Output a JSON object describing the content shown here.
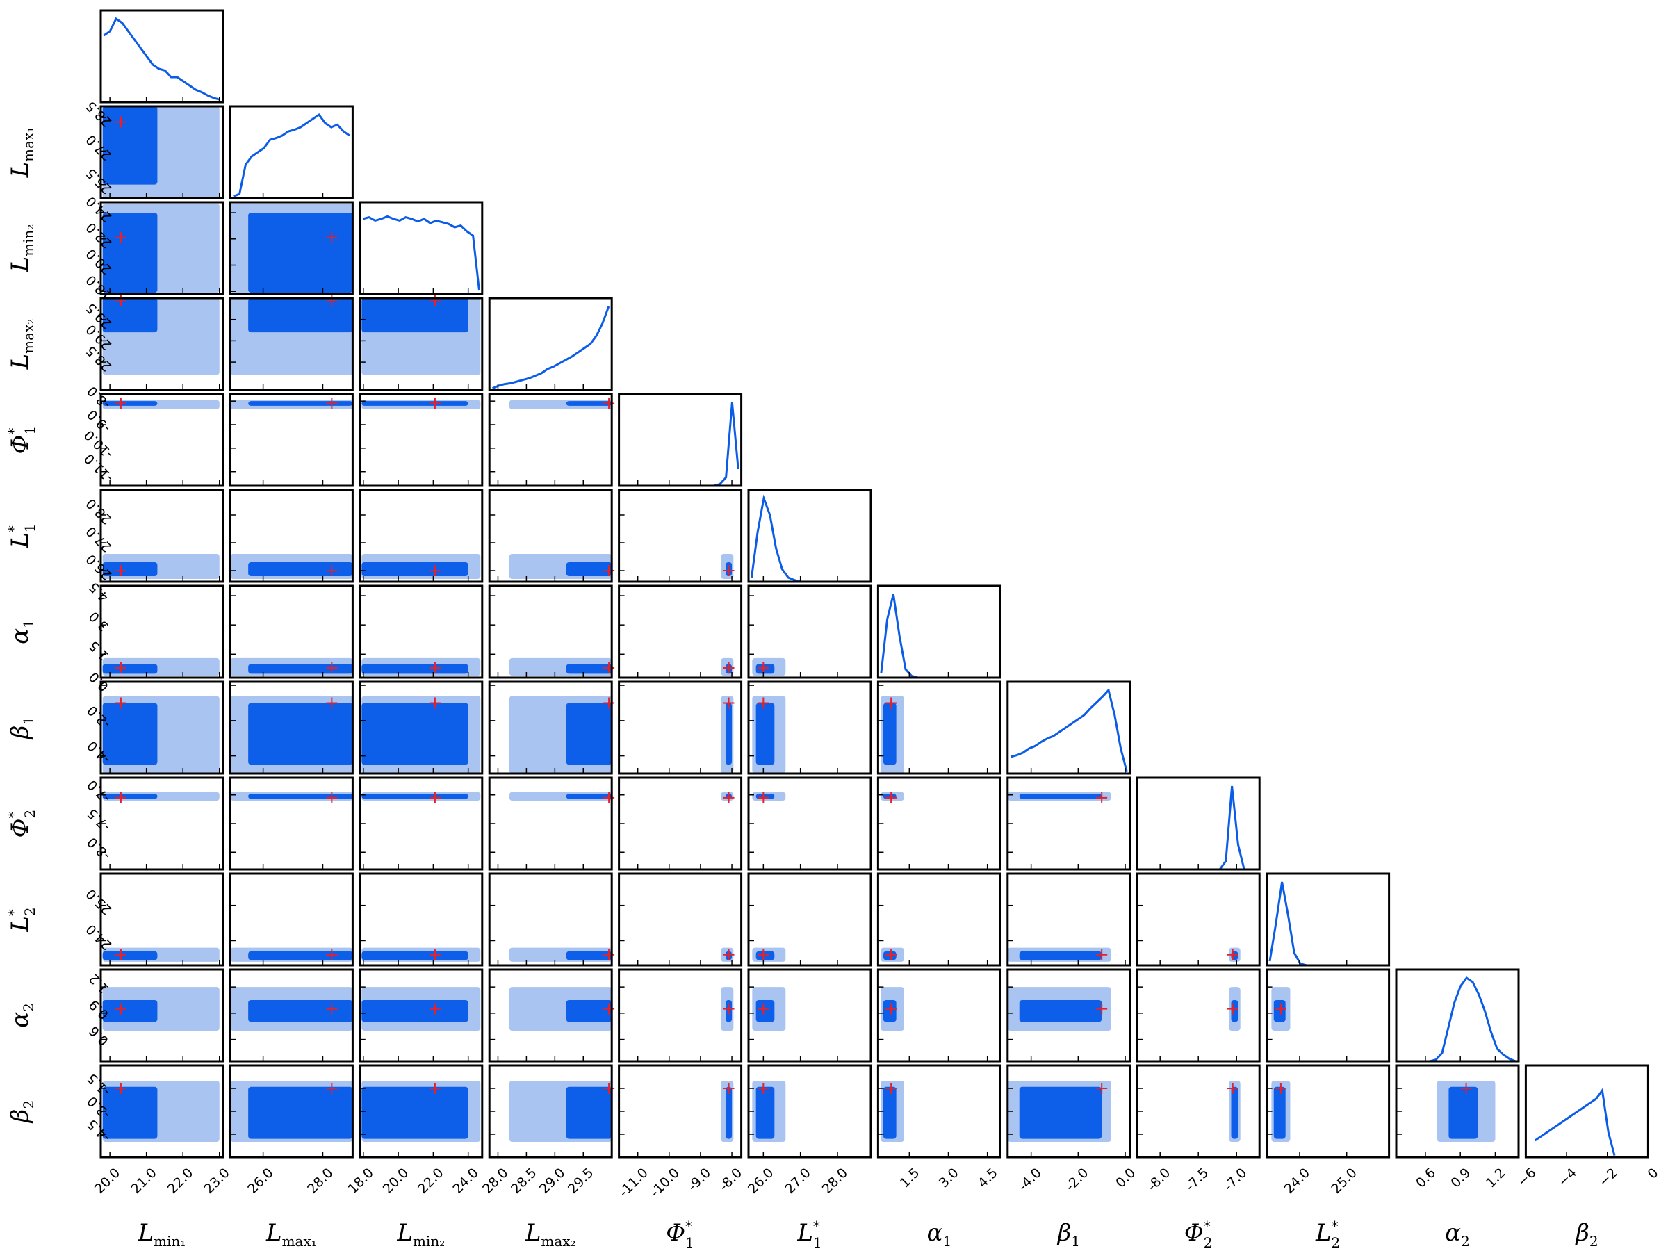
{
  "chart_data": {
    "type": "corner",
    "colors": {
      "outer": "#a9c4f0",
      "inner": "#0d5ee8",
      "line": "#0b5ce6",
      "truth": "#e8202a"
    },
    "hist_ylim": [
      0,
      1.1
    ],
    "params": [
      {
        "label": {
          "symbol": "L",
          "sub": "min₁"
        },
        "lim": [
          19.75,
          23.1
        ],
        "truth": 20.3,
        "interval95": [
          19.8,
          23.0
        ],
        "interval68": [
          19.8,
          21.3
        ],
        "xticks": [
          {
            "value": 20,
            "label": "20.0"
          },
          {
            "value": 21,
            "label": "21.0"
          },
          {
            "value": 22,
            "label": "22.0"
          },
          {
            "value": 23,
            "label": "23.0"
          }
        ],
        "hist": [
          0.8,
          0.85,
          1.0,
          0.95,
          0.85,
          0.75,
          0.65,
          0.55,
          0.45,
          0.4,
          0.38,
          0.3,
          0.3,
          0.25,
          0.2,
          0.15,
          0.12,
          0.08,
          0.05,
          0.03
        ]
      },
      {
        "label": {
          "symbol": "L",
          "sub": "max₁"
        },
        "lim": [
          24.9,
          29.0
        ],
        "truth": 28.3,
        "interval95": [
          24.9,
          29.0
        ],
        "interval68": [
          25.5,
          29.0
        ],
        "xticks": [
          {
            "value": 26,
            "label": "26.0"
          },
          {
            "value": 28,
            "label": "28.0"
          }
        ],
        "yticks": [
          {
            "value": 25.5,
            "label": "25.5"
          },
          {
            "value": 27,
            "label": "27.0"
          },
          {
            "value": 28.5,
            "label": "28.5"
          }
        ],
        "hist": [
          0.02,
          0.05,
          0.4,
          0.5,
          0.55,
          0.6,
          0.7,
          0.72,
          0.75,
          0.8,
          0.82,
          0.85,
          0.9,
          0.95,
          1.0,
          0.9,
          0.85,
          0.88,
          0.8,
          0.75
        ]
      },
      {
        "label": {
          "symbol": "L",
          "sub": "min₂"
        },
        "lim": [
          17.8,
          24.8
        ],
        "truth": 22.1,
        "interval95": [
          17.9,
          24.7
        ],
        "interval68": [
          17.9,
          24.0
        ],
        "xticks": [
          {
            "value": 18,
            "label": "18.0"
          },
          {
            "value": 20,
            "label": "20.0"
          },
          {
            "value": 22,
            "label": "22.0"
          },
          {
            "value": 24,
            "label": "24.0"
          }
        ],
        "yticks": [
          {
            "value": 18,
            "label": "18.0"
          },
          {
            "value": 20,
            "label": "20.0"
          },
          {
            "value": 22,
            "label": "22.0"
          },
          {
            "value": 24,
            "label": "24.0"
          }
        ],
        "hist": [
          0.9,
          0.92,
          0.88,
          0.9,
          0.93,
          0.9,
          0.88,
          0.92,
          0.9,
          0.87,
          0.9,
          0.85,
          0.88,
          0.86,
          0.84,
          0.8,
          0.82,
          0.75,
          0.7,
          0.05
        ]
      },
      {
        "label": {
          "symbol": "L",
          "sub": "max₂"
        },
        "lim": [
          27.85,
          30.0
        ],
        "truth": 29.95,
        "interval95": [
          28.2,
          30.0
        ],
        "interval68": [
          29.2,
          30.0
        ],
        "xticks": [
          {
            "value": 28,
            "label": "28.0"
          },
          {
            "value": 28.5,
            "label": "28.5"
          },
          {
            "value": 29,
            "label": "29.0"
          },
          {
            "value": 29.5,
            "label": "29.5"
          }
        ],
        "yticks": [
          {
            "value": 28.5,
            "label": "28.5"
          },
          {
            "value": 29,
            "label": "29.0"
          },
          {
            "value": 29.5,
            "label": "29.5"
          }
        ],
        "hist": [
          0.02,
          0.05,
          0.07,
          0.08,
          0.1,
          0.12,
          0.14,
          0.17,
          0.2,
          0.25,
          0.28,
          0.32,
          0.36,
          0.4,
          0.45,
          0.5,
          0.55,
          0.65,
          0.8,
          1.0
        ]
      },
      {
        "label": {
          "symbol": "Φ",
          "sub": "1",
          "sup": "*"
        },
        "lim": [
          -11.6,
          -7.7
        ],
        "truth": -8.1,
        "interval95": [
          -8.35,
          -7.95
        ],
        "interval68": [
          -8.2,
          -8.0
        ],
        "xticks": [
          {
            "value": -11,
            "label": "-11.0"
          },
          {
            "value": -10,
            "label": "-10.0"
          },
          {
            "value": -9,
            "label": "-9.0"
          },
          {
            "value": -8,
            "label": "-8.0"
          }
        ],
        "yticks": [
          {
            "value": -11,
            "label": "-11.0"
          },
          {
            "value": -10,
            "label": "-10.0"
          },
          {
            "value": -9,
            "label": "-9.0"
          },
          {
            "value": -8,
            "label": "-8.0"
          }
        ],
        "hist": [
          0,
          0,
          0,
          0,
          0,
          0,
          0,
          0,
          0,
          0,
          0,
          0,
          0,
          0,
          0,
          0,
          0.02,
          0.1,
          1.0,
          0.2
        ]
      },
      {
        "label": {
          "symbol": "L",
          "sub": "1",
          "sup": "*"
        },
        "lim": [
          25.6,
          28.9
        ],
        "truth": 26.0,
        "interval95": [
          25.7,
          26.6
        ],
        "interval68": [
          25.8,
          26.3
        ],
        "xticks": [
          {
            "value": 26,
            "label": "26.0"
          },
          {
            "value": 27,
            "label": "27.0"
          },
          {
            "value": 28,
            "label": "28.0"
          }
        ],
        "yticks": [
          {
            "value": 26,
            "label": "26.0"
          },
          {
            "value": 27,
            "label": "27.0"
          },
          {
            "value": 28,
            "label": "28.0"
          }
        ],
        "hist": [
          0.05,
          0.6,
          1.0,
          0.8,
          0.4,
          0.15,
          0.05,
          0.02,
          0,
          0,
          0,
          0,
          0,
          0,
          0,
          0,
          0,
          0,
          0,
          0
        ]
      },
      {
        "label": {
          "symbol": "α",
          "sub": "1"
        },
        "lim": [
          0.3,
          5.0
        ],
        "truth": 0.8,
        "interval95": [
          0.4,
          1.3
        ],
        "interval68": [
          0.5,
          1.0
        ],
        "xticks": [
          {
            "value": 1.5,
            "label": "1.5"
          },
          {
            "value": 3,
            "label": "3.0"
          },
          {
            "value": 4.5,
            "label": "4.5"
          }
        ],
        "yticks": [
          {
            "value": 1.5,
            "label": "1.5"
          },
          {
            "value": 3,
            "label": "3.0"
          },
          {
            "value": 4.5,
            "label": "4.5"
          }
        ],
        "hist": [
          0.05,
          0.7,
          1.0,
          0.5,
          0.1,
          0.02,
          0,
          0,
          0,
          0,
          0,
          0,
          0,
          0,
          0,
          0,
          0,
          0,
          0,
          0
        ]
      },
      {
        "label": {
          "symbol": "β",
          "sub": "1"
        },
        "lim": [
          -5.0,
          0.2
        ],
        "truth": -1.0,
        "interval95": [
          -5.0,
          -0.6
        ],
        "interval68": [
          -4.5,
          -1.0
        ],
        "xticks": [
          {
            "value": -4,
            "label": "-4.0"
          },
          {
            "value": -2,
            "label": "-2.0"
          },
          {
            "value": 0,
            "label": "0.0"
          }
        ],
        "yticks": [
          {
            "value": -4,
            "label": "-4.0"
          },
          {
            "value": -2,
            "label": "-2.0"
          },
          {
            "value": 0,
            "label": "0.0"
          }
        ],
        "hist": [
          0.2,
          0.22,
          0.25,
          0.3,
          0.33,
          0.38,
          0.42,
          0.45,
          0.5,
          0.55,
          0.6,
          0.65,
          0.7,
          0.78,
          0.85,
          0.92,
          1.0,
          0.7,
          0.3,
          0.02
        ]
      },
      {
        "label": {
          "symbol": "Φ",
          "sub": "2",
          "sup": "*"
        },
        "lim": [
          -8.3,
          -6.7
        ],
        "truth": -7.05,
        "interval95": [
          -7.1,
          -6.95
        ],
        "interval68": [
          -7.07,
          -6.98
        ],
        "xticks": [
          {
            "value": -8,
            "label": "-8.0"
          },
          {
            "value": -7.5,
            "label": "-7.5"
          },
          {
            "value": -7,
            "label": "-7.0"
          }
        ],
        "yticks": [
          {
            "value": -8,
            "label": "-8.0"
          },
          {
            "value": -7.5,
            "label": "-7.5"
          },
          {
            "value": -7,
            "label": "-7.0"
          }
        ],
        "hist": [
          0,
          0,
          0,
          0,
          0,
          0,
          0,
          0,
          0,
          0,
          0,
          0,
          0,
          0,
          0.1,
          1.0,
          0.3,
          0,
          0,
          0
        ]
      },
      {
        "label": {
          "symbol": "L",
          "sub": "2",
          "sup": "*"
        },
        "lim": [
          23.3,
          25.9
        ],
        "truth": 23.6,
        "interval95": [
          23.4,
          23.8
        ],
        "interval68": [
          23.45,
          23.7
        ],
        "xticks": [
          {
            "value": 24,
            "label": "24.0"
          },
          {
            "value": 25,
            "label": "25.0"
          }
        ],
        "yticks": [
          {
            "value": 24,
            "label": "24.0"
          },
          {
            "value": 25,
            "label": "25.0"
          }
        ],
        "hist": [
          0.05,
          0.5,
          1.0,
          0.6,
          0.15,
          0.02,
          0,
          0,
          0,
          0,
          0,
          0,
          0,
          0,
          0,
          0,
          0,
          0,
          0,
          0
        ]
      },
      {
        "label": {
          "symbol": "α",
          "sub": "2"
        },
        "lim": [
          0.35,
          1.4
        ],
        "truth": 0.95,
        "interval95": [
          0.7,
          1.2
        ],
        "interval68": [
          0.8,
          1.05
        ],
        "xticks": [
          {
            "value": 0.6,
            "label": "0.6"
          },
          {
            "value": 0.9,
            "label": "0.9"
          },
          {
            "value": 1.2,
            "label": "1.2"
          }
        ],
        "yticks": [
          {
            "value": 0.6,
            "label": "0.6"
          },
          {
            "value": 0.9,
            "label": "0.9"
          },
          {
            "value": 1.2,
            "label": "1.2"
          }
        ],
        "hist": [
          0,
          0,
          0,
          0,
          0,
          0,
          0.02,
          0.1,
          0.4,
          0.7,
          0.9,
          1.0,
          0.95,
          0.8,
          0.6,
          0.35,
          0.15,
          0.08,
          0.03,
          0
        ]
      },
      {
        "label": {
          "symbol": "β",
          "sub": "2"
        },
        "lim": [
          -6,
          0
        ],
        "truth": -1.5,
        "interval95": [
          -5.0,
          -1.0
        ],
        "interval68": [
          -4.8,
          -1.4
        ],
        "xticks": [
          {
            "value": -6,
            "label": "−6"
          },
          {
            "value": -4,
            "label": "−4"
          },
          {
            "value": -2,
            "label": "−2"
          },
          0
        ],
        "yticks": [
          {
            "value": -4.5,
            "label": "-4.5"
          },
          {
            "value": -3,
            "label": "-3.0"
          },
          {
            "value": -1.5,
            "label": "-1.5"
          }
        ],
        "hist": [
          null,
          0.2,
          0.25,
          0.3,
          0.35,
          0.4,
          0.45,
          0.5,
          0.55,
          0.6,
          0.65,
          0.7,
          0.8,
          0.3,
          0.02,
          null,
          null,
          null,
          null,
          null
        ]
      }
    ]
  }
}
